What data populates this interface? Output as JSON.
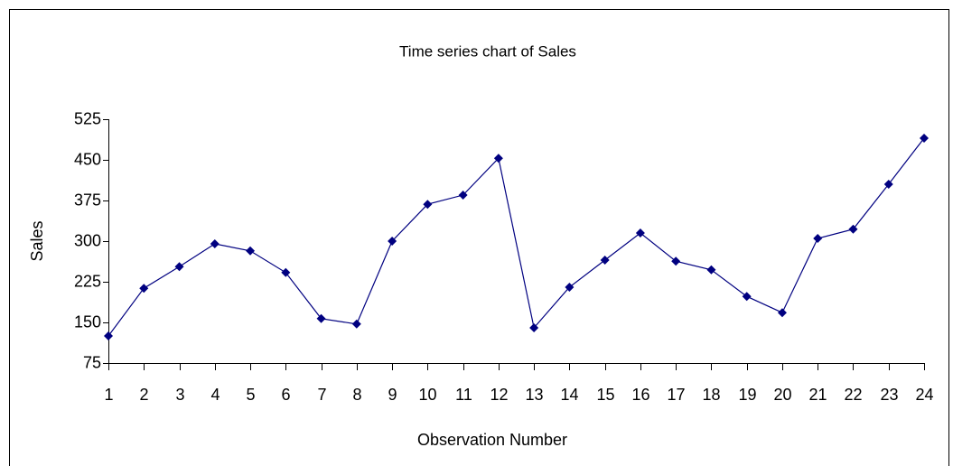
{
  "chart_data": {
    "type": "line",
    "title": "Time series chart of Sales",
    "x_label": "Observation Number",
    "y_label": "Sales",
    "x": [
      1,
      2,
      3,
      4,
      5,
      6,
      7,
      8,
      9,
      10,
      11,
      12,
      13,
      14,
      15,
      16,
      17,
      18,
      19,
      20,
      21,
      22,
      23,
      24
    ],
    "series": [
      {
        "name": "Sales",
        "color": "#000080",
        "values": [
          125,
          213,
          253,
          295,
          282,
          242,
          157,
          147,
          300,
          368,
          385,
          453,
          140,
          215,
          265,
          315,
          263,
          247,
          198,
          168,
          305,
          322,
          405,
          490
        ]
      }
    ],
    "xlim": [
      1,
      24
    ],
    "xticks": [
      1,
      2,
      3,
      4,
      5,
      6,
      7,
      8,
      9,
      10,
      11,
      12,
      13,
      14,
      15,
      16,
      17,
      18,
      19,
      20,
      21,
      22,
      23,
      24
    ],
    "ylim": [
      75,
      525
    ],
    "yticks": [
      75,
      150,
      225,
      300,
      375,
      450,
      525
    ],
    "grid": false
  }
}
